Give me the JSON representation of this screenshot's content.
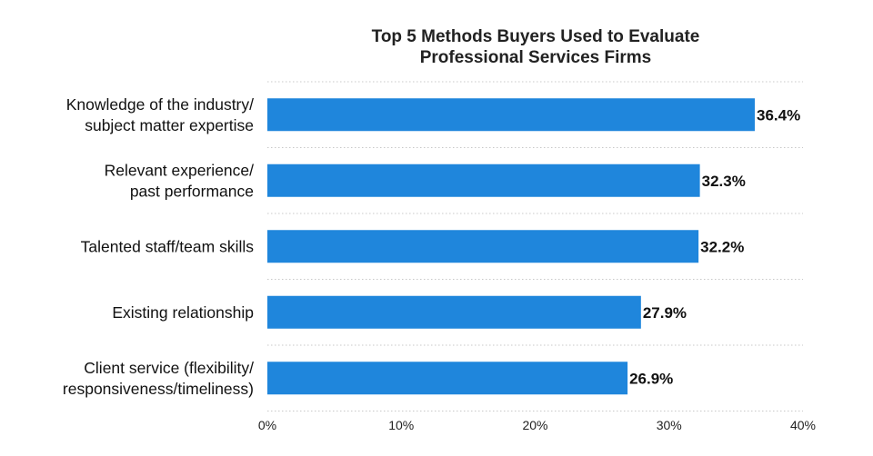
{
  "chart_data": {
    "type": "bar",
    "orientation": "horizontal",
    "title_lines": [
      "Top 5 Methods Buyers Used to Evaluate",
      "Professional Services Firms"
    ],
    "categories": [
      [
        "Knowledge of the industry/",
        "subject matter expertise"
      ],
      [
        "Relevant experience/",
        "past performance"
      ],
      [
        "Talented staff/team skills"
      ],
      [
        "Existing relationship"
      ],
      [
        "Client service (flexibility/",
        "responsiveness/timeliness)"
      ]
    ],
    "values": [
      36.4,
      32.3,
      32.2,
      27.9,
      26.9
    ],
    "value_labels": [
      "36.4%",
      "32.3%",
      "32.2%",
      "27.9%",
      "26.9%"
    ],
    "xlim": [
      0,
      40
    ],
    "x_ticks": [
      0,
      10,
      20,
      30,
      40
    ],
    "x_tick_labels": [
      "0%",
      "10%",
      "20%",
      "30%",
      "40%"
    ],
    "bar_color": "#1f86dc",
    "grid": true,
    "legend": "none"
  }
}
